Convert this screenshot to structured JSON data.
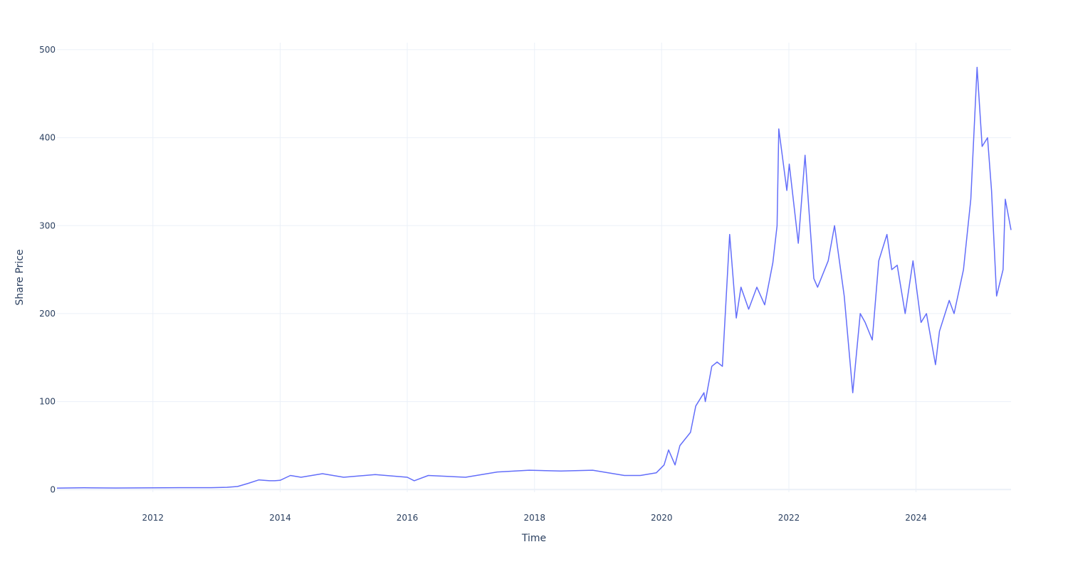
{
  "chart_data": {
    "type": "line",
    "title": "",
    "xlabel": "Time",
    "ylabel": "Share Price",
    "xlim": [
      "2010-06-29",
      "2025-06-30"
    ],
    "ylim": [
      -3,
      508
    ],
    "grid": true,
    "legend": "none",
    "colors": {
      "series": "#636efa",
      "grid": "#ebf0f8",
      "text": "#2a3f5f"
    },
    "x_ticks": [
      {
        "date": "2012-01-01",
        "label": "2012"
      },
      {
        "date": "2014-01-01",
        "label": "2014"
      },
      {
        "date": "2016-01-01",
        "label": "2016"
      },
      {
        "date": "2018-01-01",
        "label": "2018"
      },
      {
        "date": "2020-01-01",
        "label": "2020"
      },
      {
        "date": "2022-01-01",
        "label": "2022"
      },
      {
        "date": "2024-01-01",
        "label": "2024"
      }
    ],
    "y_ticks": [
      {
        "value": 0,
        "label": "0"
      },
      {
        "value": 100,
        "label": "100"
      },
      {
        "value": 200,
        "label": "200"
      },
      {
        "value": 300,
        "label": "300"
      },
      {
        "value": 400,
        "label": "400"
      },
      {
        "value": 500,
        "label": "500"
      }
    ],
    "series": [
      {
        "x": [
          "2010-06-29",
          "2010-12-01",
          "2011-06-01",
          "2011-12-01",
          "2012-06-01",
          "2012-12-01",
          "2013-03-01",
          "2013-05-01",
          "2013-07-01",
          "2013-09-01",
          "2013-11-01",
          "2013-12-01",
          "2014-01-01",
          "2014-03-01",
          "2014-05-01",
          "2014-09-01",
          "2015-01-01",
          "2015-07-01",
          "2016-01-01",
          "2016-02-10",
          "2016-05-01",
          "2016-12-01",
          "2017-06-01",
          "2017-12-01",
          "2018-06-01",
          "2018-12-01",
          "2019-06-01",
          "2019-09-01",
          "2019-12-01",
          "2020-01-15",
          "2020-02-10",
          "2020-03-18",
          "2020-04-15",
          "2020-06-15",
          "2020-07-15",
          "2020-08-31",
          "2020-09-08",
          "2020-10-15",
          "2020-11-15",
          "2020-12-15",
          "2021-01-26",
          "2021-03-05",
          "2021-04-01",
          "2021-05-15",
          "2021-07-01",
          "2021-08-15",
          "2021-10-01",
          "2021-10-25",
          "2021-11-04",
          "2021-12-20",
          "2022-01-03",
          "2022-02-24",
          "2022-04-04",
          "2022-05-24",
          "2022-06-15",
          "2022-08-15",
          "2022-09-20",
          "2022-11-15",
          "2023-01-03",
          "2023-02-15",
          "2023-03-15",
          "2023-04-25",
          "2023-06-01",
          "2023-07-18",
          "2023-08-15",
          "2023-09-15",
          "2023-10-31",
          "2023-12-15",
          "2024-01-30",
          "2024-03-01",
          "2024-04-22",
          "2024-05-15",
          "2024-07-10",
          "2024-08-07",
          "2024-09-30",
          "2024-11-11",
          "2024-12-17",
          "2025-01-15",
          "2025-02-15",
          "2025-03-10",
          "2025-04-08",
          "2025-05-15",
          "2025-05-28",
          "2025-06-30"
        ],
        "y": [
          1.6,
          2.0,
          1.8,
          1.9,
          2.2,
          2.2,
          2.6,
          3.5,
          7,
          11,
          10,
          10,
          10.5,
          16,
          14,
          18,
          14,
          17,
          14,
          10,
          16,
          14,
          20,
          22,
          21,
          22,
          16,
          16,
          19,
          28,
          45,
          28,
          50,
          65,
          95,
          110,
          100,
          140,
          145,
          140,
          290,
          195,
          230,
          205,
          230,
          210,
          258,
          300,
          410,
          340,
          370,
          280,
          380,
          240,
          230,
          260,
          300,
          220,
          110,
          200,
          190,
          170,
          260,
          290,
          250,
          255,
          200,
          260,
          190,
          200,
          142,
          180,
          215,
          200,
          250,
          330,
          480,
          390,
          400,
          340,
          220,
          250,
          330,
          295
        ]
      }
    ]
  }
}
